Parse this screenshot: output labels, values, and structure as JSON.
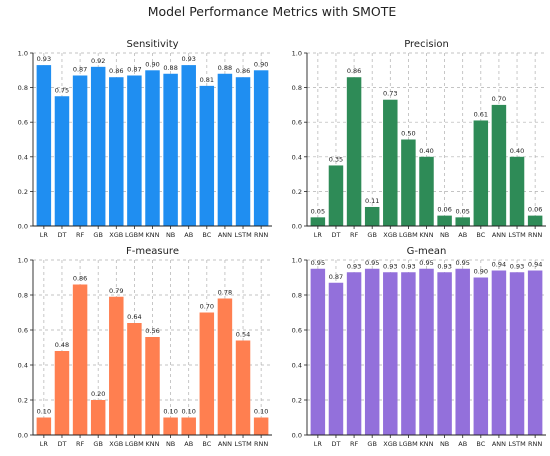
{
  "figure_title": "Model Performance Metrics with SMOTE",
  "chart_data": [
    {
      "type": "bar",
      "title": "Sensitivity",
      "color": "#1f8ef1",
      "categories": [
        "LR",
        "DT",
        "RF",
        "GB",
        "XGB",
        "LGBM",
        "KNN",
        "NB",
        "AB",
        "BC",
        "ANN",
        "LSTM",
        "RNN"
      ],
      "values": [
        0.93,
        0.75,
        0.87,
        0.92,
        0.86,
        0.87,
        0.9,
        0.88,
        0.93,
        0.81,
        0.88,
        0.86,
        0.9
      ],
      "labels": [
        "0.93",
        "0.75",
        "0.87",
        "0.92",
        "0.86",
        "0.87",
        "0.90",
        "0.88",
        "0.93",
        "0.81",
        "0.88",
        "0.86",
        "0.90"
      ],
      "ylim": [
        0,
        1.0
      ],
      "yticks": [
        "0.0",
        "0.2",
        "0.4",
        "0.6",
        "0.8",
        "1.0"
      ],
      "grid": true
    },
    {
      "type": "bar",
      "title": "Precision",
      "color": "#2e8b57",
      "categories": [
        "LR",
        "DT",
        "RF",
        "GB",
        "XGB",
        "LGBM",
        "KNN",
        "NB",
        "AB",
        "BC",
        "ANN",
        "LSTM",
        "RNN"
      ],
      "values": [
        0.05,
        0.35,
        0.86,
        0.11,
        0.73,
        0.5,
        0.4,
        0.06,
        0.05,
        0.61,
        0.7,
        0.4,
        0.06
      ],
      "labels": [
        "0.05",
        "0.35",
        "0.86",
        "0.11",
        "0.73",
        "0.50",
        "0.40",
        "0.06",
        "0.05",
        "0.61",
        "0.70",
        "0.40",
        "0.06"
      ],
      "ylim": [
        0,
        1.0
      ],
      "yticks": [
        "0.0",
        "0.2",
        "0.4",
        "0.6",
        "0.8",
        "1.0"
      ],
      "grid": true
    },
    {
      "type": "bar",
      "title": "F-measure",
      "color": "#ff7f50",
      "categories": [
        "LR",
        "DT",
        "RF",
        "GB",
        "XGB",
        "LGBM",
        "KNN",
        "NB",
        "AB",
        "BC",
        "ANN",
        "LSTM",
        "RNN"
      ],
      "values": [
        0.1,
        0.48,
        0.86,
        0.2,
        0.79,
        0.64,
        0.56,
        0.1,
        0.1,
        0.7,
        0.78,
        0.54,
        0.1
      ],
      "labels": [
        "0.10",
        "0.48",
        "0.86",
        "0.20",
        "0.79",
        "0.64",
        "0.56",
        "0.10",
        "0.10",
        "0.70",
        "0.78",
        "0.54",
        "0.10"
      ],
      "ylim": [
        0,
        1.0
      ],
      "yticks": [
        "0.0",
        "0.2",
        "0.4",
        "0.6",
        "0.8",
        "1.0"
      ],
      "grid": true
    },
    {
      "type": "bar",
      "title": "G-mean",
      "color": "#9370db",
      "categories": [
        "LR",
        "DT",
        "RF",
        "GB",
        "XGB",
        "LGBM",
        "KNN",
        "NB",
        "AB",
        "BC",
        "ANN",
        "LSTM",
        "RNN"
      ],
      "values": [
        0.95,
        0.87,
        0.93,
        0.95,
        0.93,
        0.93,
        0.95,
        0.93,
        0.95,
        0.9,
        0.94,
        0.93,
        0.94
      ],
      "labels": [
        "0.95",
        "0.87",
        "0.93",
        "0.95",
        "0.93",
        "0.93",
        "0.95",
        "0.93",
        "0.95",
        "0.90",
        "0.94",
        "0.93",
        "0.94"
      ],
      "ylim": [
        0,
        1.0
      ],
      "yticks": [
        "0.0",
        "0.2",
        "0.4",
        "0.6",
        "0.8",
        "1.0"
      ],
      "grid": true
    }
  ]
}
